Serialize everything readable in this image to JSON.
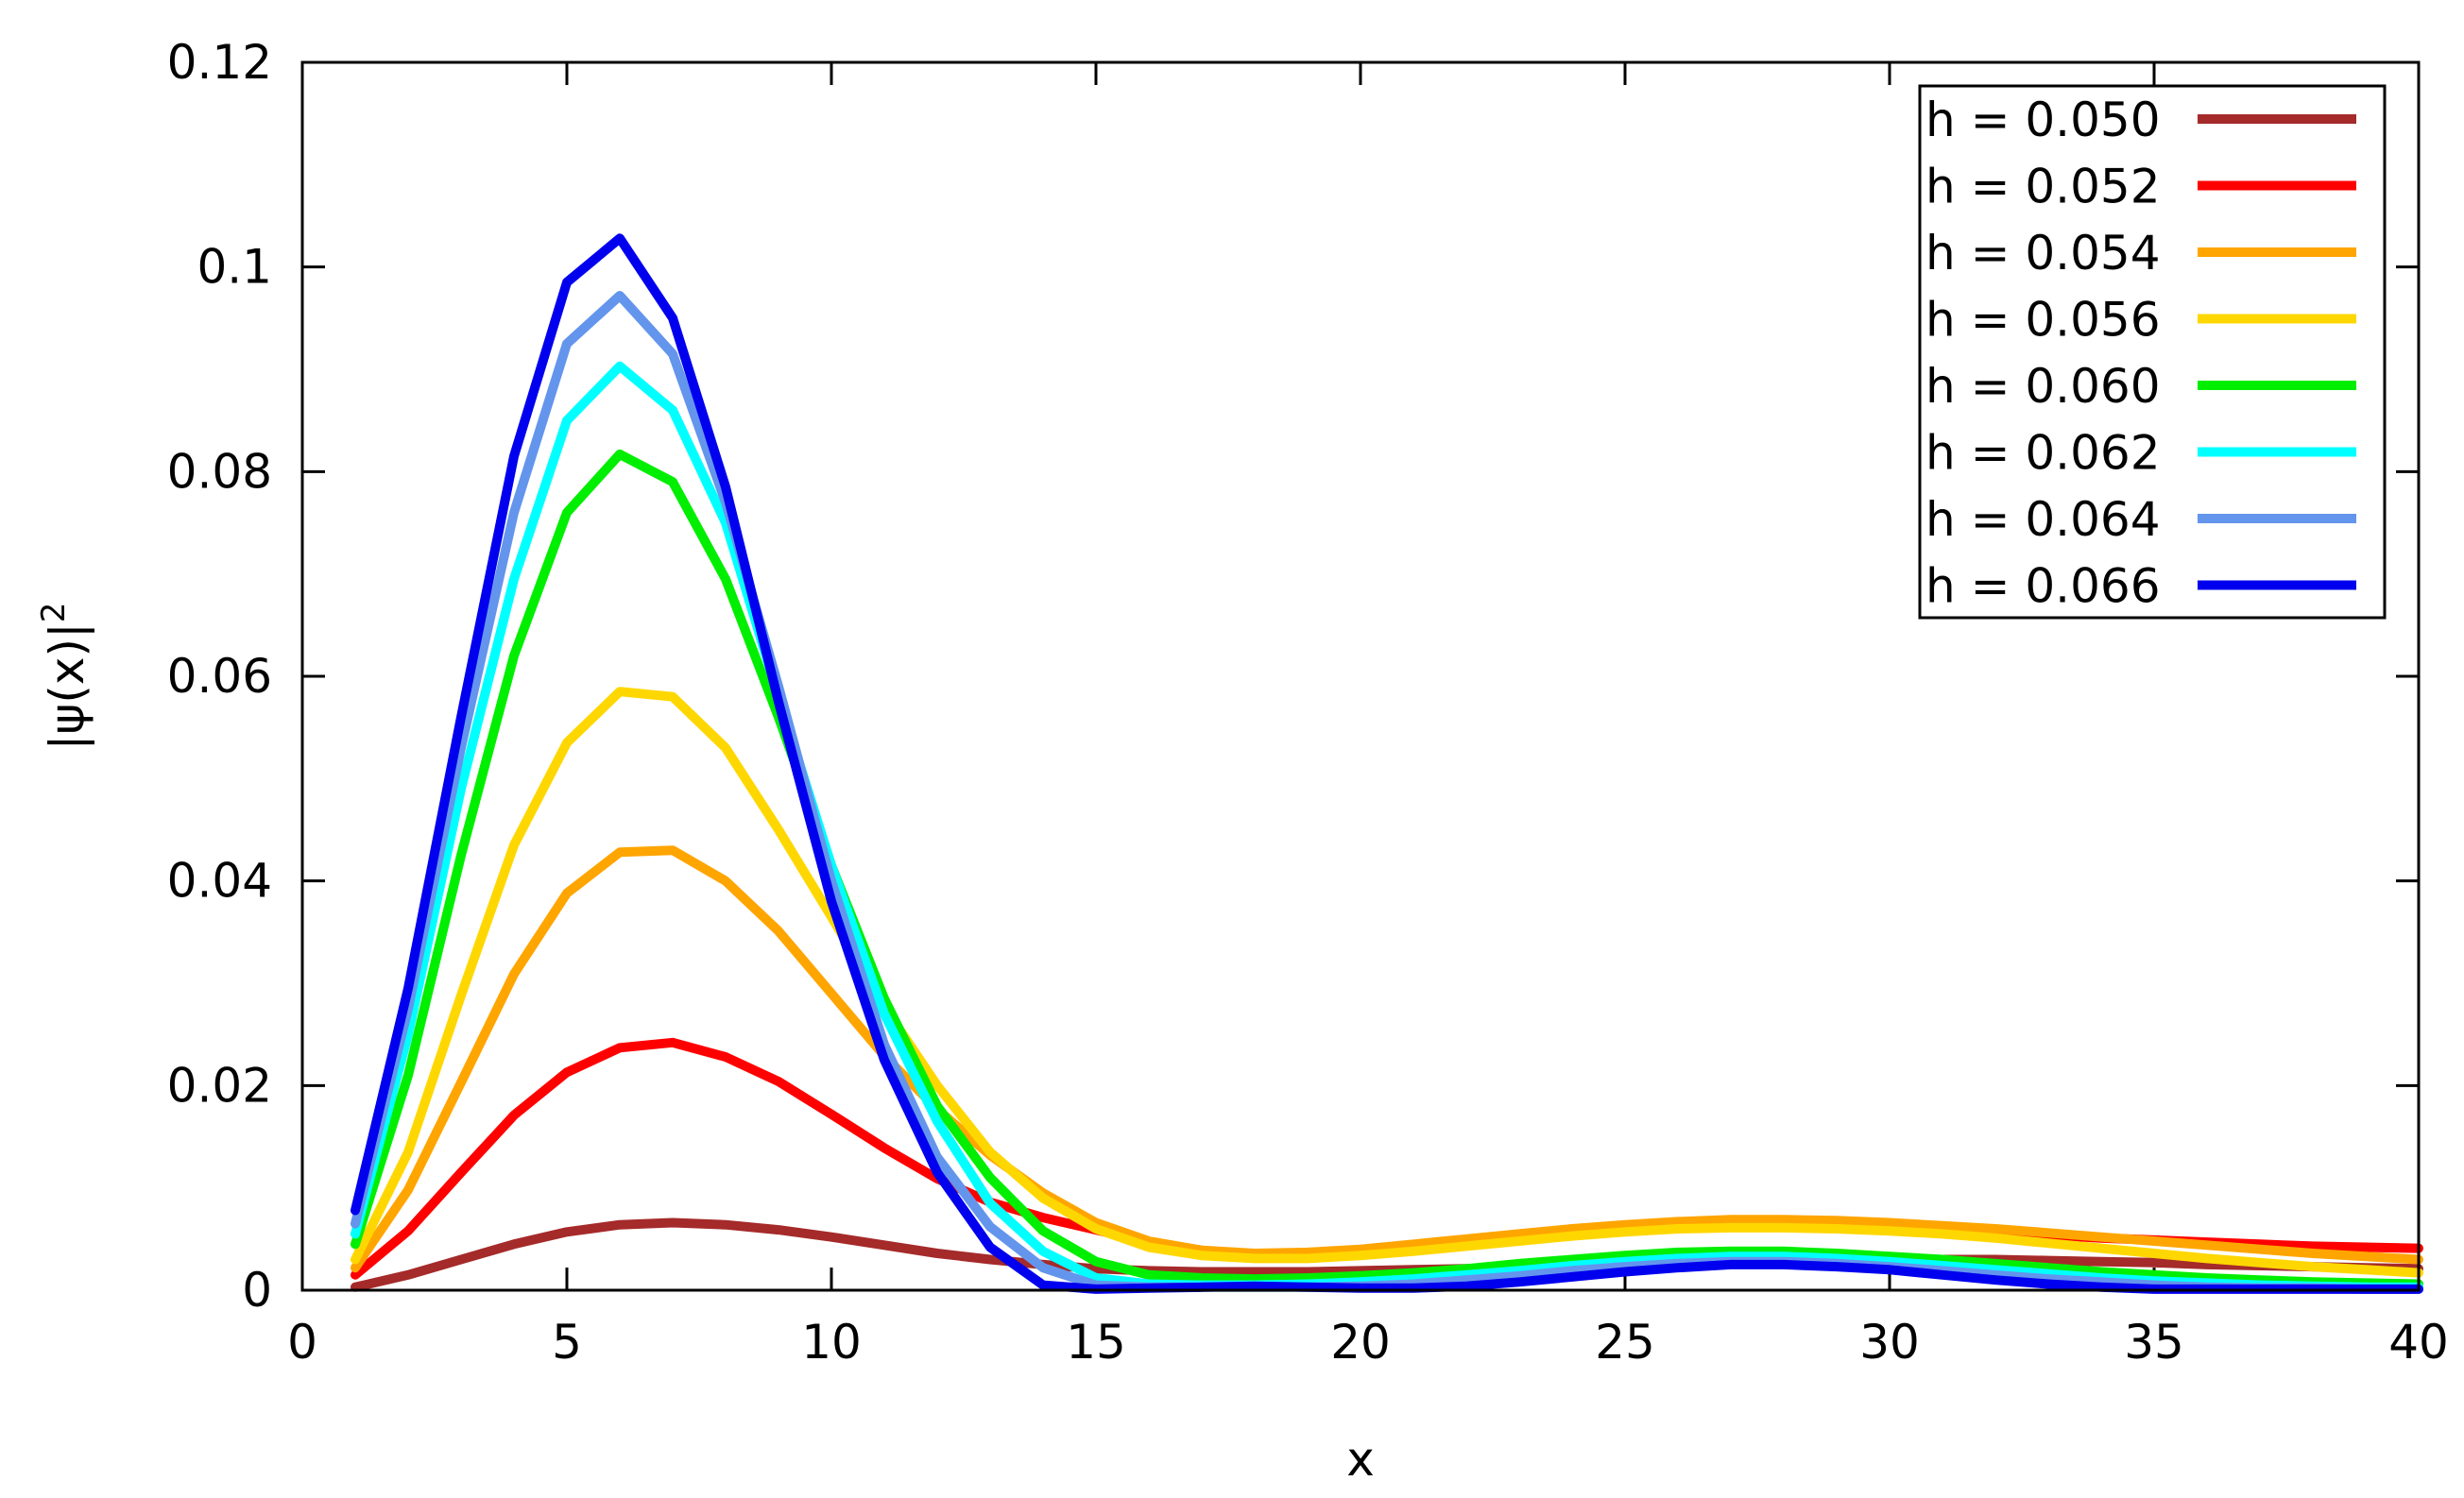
{
  "chart_data": {
    "type": "line",
    "title": "",
    "xlabel": "x",
    "ylabel": "|ψ(x)|",
    "ylabel_sup": "2",
    "xlim": [
      0,
      40
    ],
    "ylim": [
      0,
      0.12
    ],
    "xticks": [
      0,
      5,
      10,
      15,
      20,
      25,
      30,
      35,
      40
    ],
    "xtick_labels": [
      "0",
      "5",
      "10",
      "15",
      "20",
      "25",
      "30",
      "35",
      "40"
    ],
    "yticks": [
      0,
      0.02,
      0.04,
      0.06,
      0.08,
      0.1,
      0.12
    ],
    "ytick_labels": [
      "0",
      "0.02",
      "0.04",
      "0.06",
      "0.08",
      "0.1",
      "0.12"
    ],
    "grid": false,
    "legend_position": "top-right",
    "x": [
      1,
      2,
      3,
      4,
      5,
      6,
      7,
      8,
      9,
      10,
      11,
      12,
      13,
      14,
      15,
      16,
      17,
      18,
      19,
      20,
      21,
      22,
      23,
      24,
      25,
      26,
      27,
      28,
      29,
      30,
      31,
      32,
      33,
      34,
      35,
      36,
      37,
      38,
      39,
      40
    ],
    "series": [
      {
        "name": "h = 0.050",
        "color": "#a52a2a",
        "values": [
          0.0003,
          0.0015,
          0.003,
          0.0045,
          0.0057,
          0.0064,
          0.0066,
          0.0064,
          0.0059,
          0.0052,
          0.0044,
          0.0036,
          0.003,
          0.0025,
          0.0021,
          0.0019,
          0.0018,
          0.0018,
          0.0018,
          0.0019,
          0.002,
          0.0021,
          0.0022,
          0.0024,
          0.0026,
          0.0027,
          0.0028,
          0.003,
          0.003,
          0.003,
          0.003,
          0.003,
          0.0029,
          0.0028,
          0.0027,
          0.0025,
          0.0024,
          0.0023,
          0.0022,
          0.0021
        ]
      },
      {
        "name": "h = 0.052",
        "color": "#ff0000",
        "values": [
          0.0015,
          0.0058,
          0.0115,
          0.0171,
          0.0213,
          0.0237,
          0.0242,
          0.0228,
          0.0204,
          0.0172,
          0.0139,
          0.0109,
          0.0086,
          0.0071,
          0.0059,
          0.0047,
          0.0039,
          0.0035,
          0.0035,
          0.0037,
          0.0041,
          0.0046,
          0.0051,
          0.0056,
          0.006,
          0.0063,
          0.0065,
          0.0066,
          0.0065,
          0.0063,
          0.006,
          0.0057,
          0.0054,
          0.0051,
          0.0049,
          0.0047,
          0.0045,
          0.0043,
          0.0042,
          0.0041
        ]
      },
      {
        "name": "h = 0.054",
        "color": "#ffa500",
        "values": [
          0.0022,
          0.0098,
          0.0203,
          0.0309,
          0.0388,
          0.0428,
          0.043,
          0.04,
          0.0351,
          0.029,
          0.0229,
          0.0177,
          0.0132,
          0.0095,
          0.0066,
          0.0048,
          0.0039,
          0.0036,
          0.0037,
          0.004,
          0.0045,
          0.005,
          0.0055,
          0.006,
          0.0064,
          0.0067,
          0.0069,
          0.0069,
          0.0068,
          0.0066,
          0.0063,
          0.006,
          0.0056,
          0.0052,
          0.0048,
          0.0044,
          0.004,
          0.0036,
          0.0033,
          0.003
        ]
      },
      {
        "name": "h = 0.056",
        "color": "#ffd700",
        "values": [
          0.003,
          0.0135,
          0.0288,
          0.0435,
          0.0535,
          0.0585,
          0.058,
          0.053,
          0.045,
          0.0365,
          0.0277,
          0.02,
          0.0135,
          0.009,
          0.006,
          0.0042,
          0.0034,
          0.0031,
          0.0031,
          0.0034,
          0.0038,
          0.0043,
          0.0048,
          0.0053,
          0.0057,
          0.006,
          0.0061,
          0.0061,
          0.006,
          0.0058,
          0.0055,
          0.0051,
          0.0046,
          0.0041,
          0.0036,
          0.0031,
          0.0027,
          0.0023,
          0.002,
          0.0017
        ]
      },
      {
        "name": "h = 0.060",
        "color": "#00ee00",
        "values": [
          0.0045,
          0.021,
          0.0425,
          0.062,
          0.076,
          0.0817,
          0.079,
          0.0695,
          0.056,
          0.0415,
          0.0285,
          0.018,
          0.011,
          0.0058,
          0.0028,
          0.0015,
          0.0012,
          0.0011,
          0.0012,
          0.0014,
          0.0017,
          0.0021,
          0.0026,
          0.003,
          0.0034,
          0.0037,
          0.0038,
          0.0038,
          0.0036,
          0.0033,
          0.003,
          0.0026,
          0.0022,
          0.0018,
          0.0015,
          0.0012,
          0.001,
          0.0008,
          0.0007,
          0.0006
        ]
      },
      {
        "name": "h = 0.062",
        "color": "#00ffff",
        "values": [
          0.0055,
          0.025,
          0.049,
          0.0695,
          0.085,
          0.0903,
          0.086,
          0.075,
          0.058,
          0.0415,
          0.027,
          0.0165,
          0.0085,
          0.0038,
          0.0012,
          0.0006,
          0.0005,
          0.0005,
          0.0006,
          0.0008,
          0.0011,
          0.0015,
          0.0019,
          0.0024,
          0.0028,
          0.0031,
          0.0033,
          0.0033,
          0.0031,
          0.0028,
          0.0024,
          0.002,
          0.0016,
          0.0012,
          0.0009,
          0.0007,
          0.0005,
          0.0004,
          0.0003,
          0.0003
        ]
      },
      {
        "name": "h = 0.064",
        "color": "#6495ed",
        "values": [
          0.0065,
          0.0275,
          0.053,
          0.076,
          0.0925,
          0.0972,
          0.0915,
          0.077,
          0.059,
          0.04,
          0.024,
          0.013,
          0.0062,
          0.0022,
          0.0005,
          0.0003,
          0.0003,
          0.0003,
          0.0003,
          0.0004,
          0.0006,
          0.001,
          0.0014,
          0.0019,
          0.0023,
          0.0026,
          0.0028,
          0.0028,
          0.0026,
          0.0023,
          0.0019,
          0.0015,
          0.0011,
          0.0008,
          0.0005,
          0.0003,
          0.0002,
          0.0002,
          0.0001,
          0.0001
        ]
      },
      {
        "name": "h = 0.066",
        "color": "#0000ee",
        "values": [
          0.0078,
          0.0295,
          0.056,
          0.0815,
          0.0985,
          0.1028,
          0.095,
          0.0785,
          0.0575,
          0.038,
          0.0225,
          0.0115,
          0.0042,
          0.0005,
          0.0001,
          0.0002,
          0.0003,
          0.0004,
          0.0003,
          0.0002,
          0.0002,
          0.0004,
          0.0008,
          0.0013,
          0.0018,
          0.0022,
          0.0025,
          0.0025,
          0.0023,
          0.002,
          0.0015,
          0.001,
          0.0006,
          0.0003,
          0.0001,
          0.0001,
          0.0001,
          0.0001,
          0.0001,
          0.0001
        ]
      }
    ]
  }
}
